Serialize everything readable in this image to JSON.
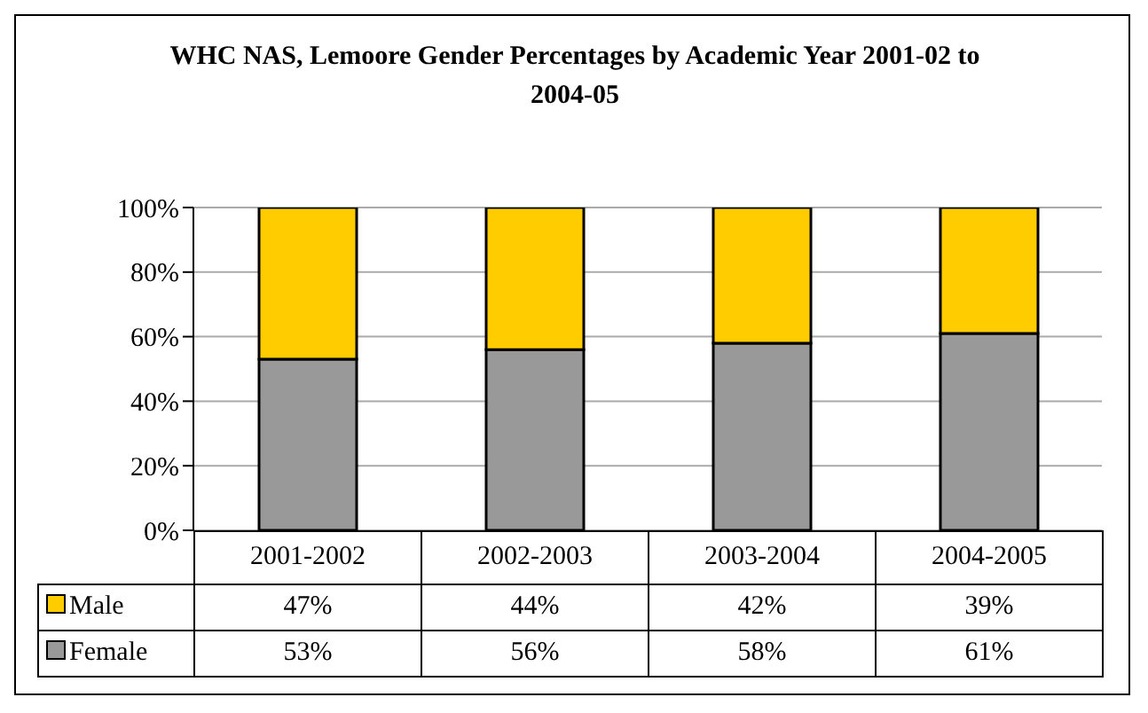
{
  "chart_data": {
    "type": "bar",
    "title": "WHC NAS, Lemoore  Gender Percentages by Academic Year 2001-02 to 2004-05",
    "categories": [
      "2001-2002",
      "2002-2003",
      "2003-2004",
      "2004-2005"
    ],
    "stacked": true,
    "series": [
      {
        "name": "Female",
        "color": "#999999",
        "values": [
          53,
          56,
          58,
          61
        ],
        "value_labels": [
          "53%",
          "56%",
          "58%",
          "61%"
        ]
      },
      {
        "name": "Male",
        "color": "#ffcc00",
        "values": [
          47,
          44,
          42,
          39
        ],
        "value_labels": [
          "47%",
          "44%",
          "42%",
          "39%"
        ]
      }
    ],
    "ylim": [
      0,
      100
    ],
    "yticks": [
      {
        "value": 0,
        "label": "0%"
      },
      {
        "value": 20,
        "label": "20%"
      },
      {
        "value": 40,
        "label": "40%"
      },
      {
        "value": 60,
        "label": "60%"
      },
      {
        "value": 80,
        "label": "80%"
      },
      {
        "value": 100,
        "label": "100%"
      }
    ],
    "grid": "y",
    "legend": "bottom"
  }
}
